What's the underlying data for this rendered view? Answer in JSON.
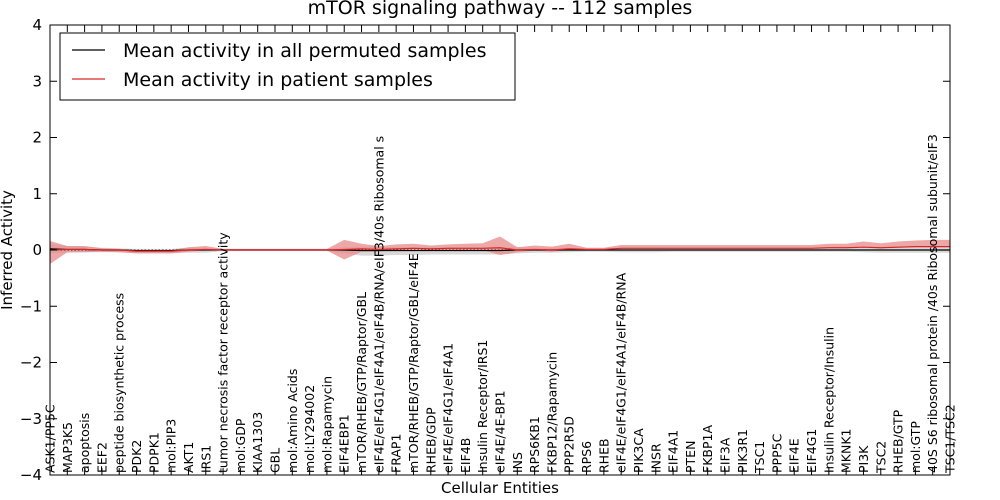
{
  "chart_data": {
    "type": "line",
    "title": "mTOR signaling pathway -- 112 samples",
    "xlabel": "Cellular Entities",
    "ylabel": "Inferred Activity",
    "ylim": [
      -4,
      4
    ],
    "yticks": [
      "−4",
      "−3",
      "−2",
      "−1",
      "0",
      "1",
      "2",
      "3",
      "4"
    ],
    "grid": false,
    "legend_position": "top-left",
    "categories": [
      "ASK1/PP5C",
      "MAP3K5",
      "apoptosis",
      "EEF2",
      "peptide biosynthetic process",
      "PDK2",
      "PDPK1",
      "mol:PIP3",
      "AKT1",
      "IRS1",
      "tumor necrosis factor receptor activity",
      "mol:GDP",
      "KIAA1303",
      "GBL",
      "mol:Amino Acids",
      "mol:LY294002",
      "mol:Rapamycin",
      "EIF4EBP1",
      "mTOR/RHEB/GTP/Raptor/GBL",
      "eIF4E/eIF4G1/eIF4A1/eIF4B/RNA/eIF3/40s Ribosomal s",
      "FRAP1",
      "mTOR/RHEB/GTP/Raptor/GBL/eIF4E",
      "RHEB/GDP",
      "eIF4E/eIF4G1/eIF4A1",
      "EIF4B",
      "Insulin Receptor/IRS1",
      "eIF4E/4E-BP1",
      "INS",
      "RPS6KB1",
      "FKBP12/Rapamycin",
      "PPP2R5D",
      "RPS6",
      "RHEB",
      "eIF4E/eIF4G1/eIF4A1/eIF4B/RNA",
      "PIK3CA",
      "INSR",
      "EIF4A1",
      "PTEN",
      "FKBP1A",
      "EIF3A",
      "PIK3R1",
      "TSC1",
      "PPP5C",
      "EIF4E",
      "EIF4G1",
      "Insulin Receptor/Insulin",
      "MKNK1",
      "PI3K",
      "TSC2",
      "RHEB/GTP",
      "mol:GTP",
      "40S S6 ribosomal protein /40s Ribosomal subunit/eIF3",
      "TSC1/TSC2"
    ],
    "series": [
      {
        "name": "Mean activity in all permuted samples",
        "color": "#000000",
        "values": [
          0.02,
          0.01,
          0.01,
          0.0,
          0.0,
          -0.01,
          -0.01,
          -0.01,
          0.0,
          0.0,
          0.0,
          0.0,
          0.0,
          0.0,
          0.0,
          0.0,
          0.0,
          0.0,
          -0.01,
          -0.01,
          -0.01,
          -0.01,
          -0.01,
          -0.01,
          -0.01,
          -0.01,
          -0.01,
          0.0,
          0.0,
          0.0,
          0.0,
          0.0,
          0.0,
          0.0,
          0.0,
          0.0,
          0.0,
          0.0,
          0.0,
          0.0,
          0.0,
          0.0,
          0.0,
          0.0,
          0.0,
          0.0,
          0.0,
          0.0,
          0.0,
          0.0,
          0.0,
          0.0,
          0.0
        ],
        "band_low": [
          -0.08,
          -0.06,
          -0.05,
          -0.04,
          -0.04,
          -0.05,
          -0.05,
          -0.05,
          -0.05,
          -0.05,
          -0.02,
          -0.02,
          -0.02,
          -0.02,
          -0.02,
          -0.02,
          -0.02,
          -0.06,
          -0.09,
          -0.09,
          -0.08,
          -0.08,
          -0.07,
          -0.07,
          -0.07,
          -0.07,
          -0.07,
          -0.06,
          -0.05,
          -0.05,
          -0.04,
          -0.03,
          -0.03,
          -0.04,
          -0.04,
          -0.04,
          -0.03,
          -0.03,
          -0.03,
          -0.03,
          -0.03,
          -0.03,
          -0.03,
          -0.03,
          -0.03,
          -0.03,
          -0.03,
          -0.04,
          -0.05,
          -0.05,
          -0.05,
          -0.05,
          -0.05
        ],
        "band_high": [
          0.09,
          0.06,
          0.05,
          0.04,
          0.03,
          0.03,
          0.03,
          0.03,
          0.04,
          0.04,
          0.02,
          0.02,
          0.02,
          0.02,
          0.02,
          0.02,
          0.02,
          0.05,
          0.07,
          0.07,
          0.06,
          0.06,
          0.06,
          0.06,
          0.06,
          0.06,
          0.06,
          0.05,
          0.04,
          0.04,
          0.04,
          0.03,
          0.03,
          0.03,
          0.03,
          0.03,
          0.03,
          0.03,
          0.03,
          0.03,
          0.03,
          0.03,
          0.03,
          0.03,
          0.03,
          0.03,
          0.03,
          0.04,
          0.05,
          0.05,
          0.05,
          0.05,
          0.05
        ]
      },
      {
        "name": "Mean activity in patient samples",
        "color": "#d62728",
        "values": [
          0.0,
          0.01,
          0.01,
          0.0,
          0.0,
          -0.02,
          -0.02,
          -0.02,
          0.0,
          0.01,
          0.0,
          0.0,
          0.0,
          0.0,
          0.0,
          0.0,
          0.0,
          0.01,
          0.02,
          0.01,
          0.02,
          0.03,
          0.02,
          0.03,
          0.03,
          0.03,
          0.04,
          0.0,
          0.01,
          0.0,
          0.02,
          0.01,
          0.01,
          0.03,
          0.03,
          0.03,
          0.03,
          0.03,
          0.03,
          0.03,
          0.03,
          0.03,
          0.03,
          0.03,
          0.03,
          0.04,
          0.04,
          0.05,
          0.04,
          0.05,
          0.06,
          0.06,
          0.06
        ],
        "band_low": [
          -0.25,
          -0.05,
          -0.05,
          -0.03,
          -0.04,
          -0.04,
          -0.04,
          -0.04,
          -0.03,
          -0.02,
          -0.01,
          -0.01,
          -0.01,
          -0.01,
          -0.01,
          -0.01,
          -0.01,
          -0.18,
          -0.05,
          -0.04,
          -0.02,
          -0.02,
          -0.02,
          -0.03,
          -0.03,
          -0.03,
          -0.13,
          -0.04,
          -0.02,
          -0.03,
          -0.02,
          -0.01,
          0.0,
          0.0,
          0.0,
          0.0,
          0.0,
          0.0,
          0.0,
          0.0,
          0.0,
          0.0,
          0.0,
          0.0,
          0.0,
          0.0,
          0.0,
          0.0,
          -0.01,
          -0.01,
          -0.01,
          -0.01,
          -0.01
        ],
        "band_high": [
          0.16,
          0.06,
          0.06,
          0.03,
          0.02,
          0.01,
          0.01,
          0.02,
          0.05,
          0.06,
          0.02,
          0.02,
          0.02,
          0.02,
          0.02,
          0.02,
          0.02,
          0.17,
          0.09,
          0.06,
          0.08,
          0.08,
          0.06,
          0.07,
          0.08,
          0.09,
          0.2,
          0.05,
          0.07,
          0.06,
          0.09,
          0.03,
          0.03,
          0.06,
          0.06,
          0.06,
          0.06,
          0.06,
          0.06,
          0.06,
          0.06,
          0.06,
          0.06,
          0.06,
          0.06,
          0.07,
          0.07,
          0.1,
          0.08,
          0.1,
          0.11,
          0.12,
          0.12
        ]
      }
    ]
  }
}
